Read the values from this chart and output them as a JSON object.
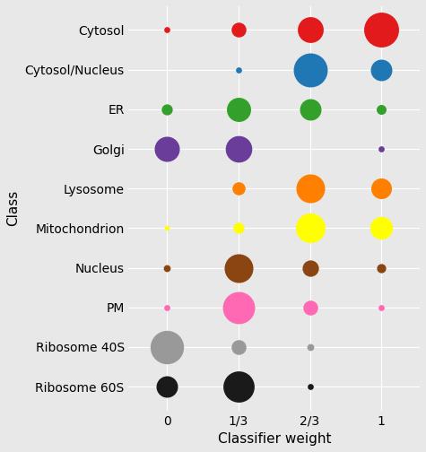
{
  "classes": [
    "Cytosol",
    "Cytosol/Nucleus",
    "ER",
    "Golgi",
    "Lysosome",
    "Mitochondrion",
    "Nucleus",
    "PM",
    "Ribosome 40S",
    "Ribosome 60S"
  ],
  "weights": [
    0,
    0.3333,
    0.6667,
    1.0
  ],
  "weight_labels": [
    "0",
    "1/3",
    "2/3",
    "1"
  ],
  "color_map": {
    "Cytosol": "#e31a1c",
    "Cytosol/Nucleus": "#1f78b4",
    "ER": "#33a02c",
    "Golgi": "#6a3d9a",
    "Lysosome": "#ff7f00",
    "Mitochondrion": "#ffff00",
    "Nucleus": "#8b4513",
    "PM": "#ff69b4",
    "Ribosome 40S": "#999999",
    "Ribosome 60S": "#1a1a1a"
  },
  "bubble_data": {
    "Cytosol": [
      3,
      18,
      55,
      100
    ],
    "Cytosol/Nucleus": [
      0,
      3,
      95,
      38
    ],
    "ER": [
      10,
      48,
      38,
      8
    ],
    "Golgi": [
      52,
      58,
      0,
      3
    ],
    "Lysosome": [
      0,
      14,
      68,
      35
    ],
    "Mitochondrion": [
      2,
      10,
      72,
      42
    ],
    "Nucleus": [
      4,
      68,
      22,
      7
    ],
    "PM": [
      3,
      85,
      18,
      3
    ],
    "Ribosome 40S": [
      92,
      18,
      4,
      0
    ],
    "Ribosome 60S": [
      38,
      80,
      3,
      0
    ]
  },
  "background_color": "#e8e8e8",
  "xlabel": "Classifier weight",
  "ylabel": "Class",
  "xlim": [
    -0.18,
    1.18
  ],
  "ylim": [
    -0.6,
    9.6
  ],
  "max_bubble_size": 100,
  "scale_factor": 28
}
